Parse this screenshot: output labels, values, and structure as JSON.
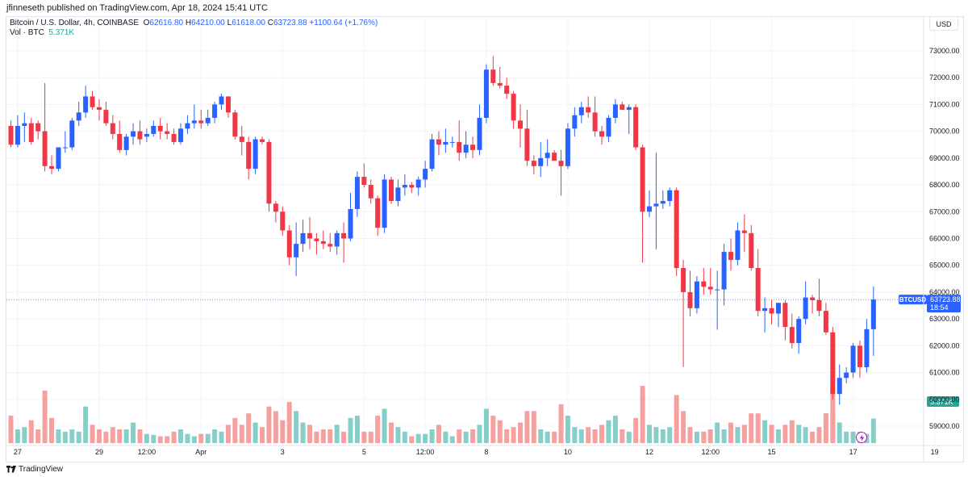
{
  "header": {
    "publisher": "jfinneseth published on TradingView.com, Apr 18, 2024 15:41 UTC"
  },
  "legend": {
    "symbol": "Bitcoin / U.S. Dollar, 4h, COINBASE",
    "o_key": "O",
    "o_val": "62616.80",
    "h_key": "H",
    "h_val": "64210.00",
    "l_key": "L",
    "l_val": "61618.00",
    "c_key": "C",
    "c_val": "63723.88",
    "change": "+1100.64 (+1.76%)",
    "vol_label": "Vol · BTC",
    "vol_value": "5.371K"
  },
  "currency": "USD",
  "price_tag": {
    "symbol": "BTCUSD",
    "price": "63723.88",
    "countdown": "18:54"
  },
  "volume_tag": "5.371K",
  "footer": {
    "brand": "TradingView"
  },
  "colors": {
    "up": "#2962ff",
    "down": "#f23645",
    "vol_up": "#26a69a",
    "vol_down": "#ef5350"
  },
  "chart_data": {
    "type": "candlestick",
    "timeframe": "4h",
    "y_axis": {
      "min": 58500,
      "max": 73500,
      "ticks": [
        59000,
        60000,
        61000,
        62000,
        63000,
        64000,
        65000,
        66000,
        67000,
        68000,
        69000,
        70000,
        71000,
        72000,
        73000
      ],
      "tick_labels": [
        "59000.00",
        "60000.00",
        "61000.00",
        "62000.00",
        "63000.00",
        "64000.00",
        "65000.00",
        "66000.00",
        "67000.00",
        "68000.00",
        "69000.00",
        "70000.00",
        "71000.00",
        "72000.00",
        "73000.00"
      ]
    },
    "x_axis": {
      "labels": [
        {
          "label": "27",
          "bar": 1
        },
        {
          "label": "29",
          "bar": 13
        },
        {
          "label": "12:00",
          "bar": 20
        },
        {
          "label": "Apr",
          "bar": 28
        },
        {
          "label": "3",
          "bar": 40
        },
        {
          "label": "5",
          "bar": 52
        },
        {
          "label": "12:00",
          "bar": 61
        },
        {
          "label": "8",
          "bar": 70
        },
        {
          "label": "10",
          "bar": 82
        },
        {
          "label": "12",
          "bar": 94
        },
        {
          "label": "12:00",
          "bar": 103
        },
        {
          "label": "15",
          "bar": 112
        },
        {
          "label": "17",
          "bar": 124
        },
        {
          "label": "19",
          "bar": 136
        }
      ]
    },
    "last_price": 63723.88,
    "volume_max": 15,
    "candles": [
      {
        "o": 70200,
        "h": 70400,
        "l": 69400,
        "c": 69500,
        "v": 6
      },
      {
        "o": 69500,
        "h": 70600,
        "l": 69400,
        "c": 70200,
        "v": 3
      },
      {
        "o": 70200,
        "h": 70700,
        "l": 69600,
        "c": 70300,
        "v": 3.5
      },
      {
        "o": 70300,
        "h": 70500,
        "l": 69500,
        "c": 69600,
        "v": 5
      },
      {
        "o": 70300,
        "h": 70400,
        "l": 69700,
        "c": 70000,
        "v": 3
      },
      {
        "o": 70000,
        "h": 71800,
        "l": 68500,
        "c": 68700,
        "v": 11.5
      },
      {
        "o": 68700,
        "h": 69100,
        "l": 68400,
        "c": 68600,
        "v": 5.5
      },
      {
        "o": 68600,
        "h": 69400,
        "l": 68500,
        "c": 69400,
        "v": 3
      },
      {
        "o": 69400,
        "h": 70000,
        "l": 69200,
        "c": 69400,
        "v": 2.5
      },
      {
        "o": 69400,
        "h": 70500,
        "l": 69300,
        "c": 70400,
        "v": 3
      },
      {
        "o": 70400,
        "h": 71100,
        "l": 70200,
        "c": 70700,
        "v": 2.5
      },
      {
        "o": 70700,
        "h": 71700,
        "l": 70500,
        "c": 71300,
        "v": 8
      },
      {
        "o": 71300,
        "h": 71500,
        "l": 70800,
        "c": 70900,
        "v": 4
      },
      {
        "o": 70900,
        "h": 71200,
        "l": 70400,
        "c": 70800,
        "v": 3
      },
      {
        "o": 70800,
        "h": 71100,
        "l": 70200,
        "c": 70300,
        "v": 2.5
      },
      {
        "o": 70300,
        "h": 70600,
        "l": 69700,
        "c": 69900,
        "v": 3.5
      },
      {
        "o": 69900,
        "h": 70400,
        "l": 69200,
        "c": 69300,
        "v": 3
      },
      {
        "o": 69300,
        "h": 69900,
        "l": 69100,
        "c": 69800,
        "v": 3
      },
      {
        "o": 69800,
        "h": 70300,
        "l": 69500,
        "c": 70000,
        "v": 4.5
      },
      {
        "o": 70000,
        "h": 70400,
        "l": 69500,
        "c": 69700,
        "v": 3
      },
      {
        "o": 69800,
        "h": 70100,
        "l": 69600,
        "c": 69900,
        "v": 2
      },
      {
        "o": 69900,
        "h": 70400,
        "l": 69800,
        "c": 70200,
        "v": 1.8
      },
      {
        "o": 70200,
        "h": 70500,
        "l": 69700,
        "c": 70000,
        "v": 1.5
      },
      {
        "o": 70000,
        "h": 70300,
        "l": 69700,
        "c": 69900,
        "v": 1.5
      },
      {
        "o": 69900,
        "h": 70100,
        "l": 69500,
        "c": 69600,
        "v": 2.5
      },
      {
        "o": 69600,
        "h": 70300,
        "l": 69500,
        "c": 70100,
        "v": 3
      },
      {
        "o": 70100,
        "h": 70600,
        "l": 69900,
        "c": 70300,
        "v": 2
      },
      {
        "o": 70300,
        "h": 71000,
        "l": 70100,
        "c": 70400,
        "v": 1.5
      },
      {
        "o": 70400,
        "h": 70800,
        "l": 70100,
        "c": 70300,
        "v": 2
      },
      {
        "o": 70300,
        "h": 70800,
        "l": 70200,
        "c": 70500,
        "v": 2
      },
      {
        "o": 70500,
        "h": 71100,
        "l": 70300,
        "c": 71000,
        "v": 3
      },
      {
        "o": 71000,
        "h": 71400,
        "l": 70800,
        "c": 71300,
        "v": 2.5
      },
      {
        "o": 71300,
        "h": 71300,
        "l": 70500,
        "c": 70700,
        "v": 4
      },
      {
        "o": 70700,
        "h": 70800,
        "l": 69700,
        "c": 69800,
        "v": 5.5
      },
      {
        "o": 69800,
        "h": 70200,
        "l": 69100,
        "c": 69600,
        "v": 4
      },
      {
        "o": 69600,
        "h": 69800,
        "l": 68200,
        "c": 68600,
        "v": 6.5
      },
      {
        "o": 68600,
        "h": 69800,
        "l": 68400,
        "c": 69700,
        "v": 4.5
      },
      {
        "o": 69700,
        "h": 69800,
        "l": 69500,
        "c": 69600,
        "v": 3.5
      },
      {
        "o": 69600,
        "h": 69700,
        "l": 67000,
        "c": 67300,
        "v": 8
      },
      {
        "o": 67300,
        "h": 67400,
        "l": 66600,
        "c": 67000,
        "v": 7
      },
      {
        "o": 67000,
        "h": 67200,
        "l": 66100,
        "c": 66300,
        "v": 5
      },
      {
        "o": 66300,
        "h": 66500,
        "l": 65000,
        "c": 65300,
        "v": 9
      },
      {
        "o": 65300,
        "h": 66600,
        "l": 64600,
        "c": 65800,
        "v": 7
      },
      {
        "o": 65800,
        "h": 66700,
        "l": 65500,
        "c": 66200,
        "v": 4.5
      },
      {
        "o": 66200,
        "h": 66800,
        "l": 65600,
        "c": 66000,
        "v": 4
      },
      {
        "o": 66000,
        "h": 66200,
        "l": 65400,
        "c": 65900,
        "v": 2.5
      },
      {
        "o": 65900,
        "h": 66300,
        "l": 65600,
        "c": 65800,
        "v": 3
      },
      {
        "o": 65800,
        "h": 66200,
        "l": 65500,
        "c": 65700,
        "v": 3
      },
      {
        "o": 65700,
        "h": 66300,
        "l": 65400,
        "c": 66200,
        "v": 4
      },
      {
        "o": 66200,
        "h": 66600,
        "l": 65100,
        "c": 66000,
        "v": 2.5
      },
      {
        "o": 66000,
        "h": 67700,
        "l": 65900,
        "c": 67100,
        "v": 5.5
      },
      {
        "o": 67100,
        "h": 68500,
        "l": 66800,
        "c": 68300,
        "v": 6
      },
      {
        "o": 68300,
        "h": 68800,
        "l": 67900,
        "c": 68000,
        "v": 2.5
      },
      {
        "o": 68000,
        "h": 68200,
        "l": 67300,
        "c": 67500,
        "v": 2.5
      },
      {
        "o": 67500,
        "h": 67600,
        "l": 66100,
        "c": 66400,
        "v": 6
      },
      {
        "o": 66400,
        "h": 68400,
        "l": 66200,
        "c": 68200,
        "v": 7.5
      },
      {
        "o": 68200,
        "h": 68300,
        "l": 67300,
        "c": 67400,
        "v": 4.5
      },
      {
        "o": 67400,
        "h": 68200,
        "l": 67200,
        "c": 67900,
        "v": 3.5
      },
      {
        "o": 67900,
        "h": 68400,
        "l": 67600,
        "c": 68000,
        "v": 2.5
      },
      {
        "o": 68000,
        "h": 68100,
        "l": 67700,
        "c": 67900,
        "v": 1.5
      },
      {
        "o": 67900,
        "h": 68300,
        "l": 67600,
        "c": 68200,
        "v": 2
      },
      {
        "o": 68200,
        "h": 68900,
        "l": 67900,
        "c": 68600,
        "v": 2
      },
      {
        "o": 68600,
        "h": 69900,
        "l": 68500,
        "c": 69700,
        "v": 3
      },
      {
        "o": 69700,
        "h": 70000,
        "l": 69100,
        "c": 69500,
        "v": 4
      },
      {
        "o": 69500,
        "h": 70100,
        "l": 69200,
        "c": 69600,
        "v": 2.5
      },
      {
        "o": 69600,
        "h": 69800,
        "l": 69400,
        "c": 69600,
        "v": 1.5
      },
      {
        "o": 69600,
        "h": 70400,
        "l": 68900,
        "c": 69200,
        "v": 3
      },
      {
        "o": 69200,
        "h": 70000,
        "l": 69000,
        "c": 69500,
        "v": 2.5
      },
      {
        "o": 69500,
        "h": 69800,
        "l": 69000,
        "c": 69300,
        "v": 3
      },
      {
        "o": 69300,
        "h": 71000,
        "l": 69100,
        "c": 70500,
        "v": 4
      },
      {
        "o": 70500,
        "h": 72500,
        "l": 70300,
        "c": 72300,
        "v": 7.5
      },
      {
        "o": 72300,
        "h": 72800,
        "l": 71700,
        "c": 71800,
        "v": 6
      },
      {
        "o": 71800,
        "h": 72400,
        "l": 71600,
        "c": 71700,
        "v": 5
      },
      {
        "o": 71700,
        "h": 72000,
        "l": 71200,
        "c": 71400,
        "v": 3
      },
      {
        "o": 71400,
        "h": 71500,
        "l": 70100,
        "c": 70400,
        "v": 3.5
      },
      {
        "o": 70400,
        "h": 71000,
        "l": 69400,
        "c": 70100,
        "v": 4.5
      },
      {
        "o": 70100,
        "h": 70800,
        "l": 68700,
        "c": 68900,
        "v": 7
      },
      {
        "o": 68900,
        "h": 69100,
        "l": 68400,
        "c": 68700,
        "v": 7
      },
      {
        "o": 68700,
        "h": 69600,
        "l": 68300,
        "c": 69000,
        "v": 3
      },
      {
        "o": 69000,
        "h": 69700,
        "l": 68700,
        "c": 69200,
        "v": 2.5
      },
      {
        "o": 69200,
        "h": 69300,
        "l": 68900,
        "c": 68900,
        "v": 2.5
      },
      {
        "o": 68900,
        "h": 69300,
        "l": 67600,
        "c": 68700,
        "v": 8.5
      },
      {
        "o": 68700,
        "h": 70300,
        "l": 68600,
        "c": 70100,
        "v": 6
      },
      {
        "o": 70100,
        "h": 70900,
        "l": 69800,
        "c": 70600,
        "v": 3.5
      },
      {
        "o": 70600,
        "h": 71100,
        "l": 70300,
        "c": 70900,
        "v": 3
      },
      {
        "o": 70900,
        "h": 71300,
        "l": 70500,
        "c": 70700,
        "v": 3.5
      },
      {
        "o": 70700,
        "h": 71300,
        "l": 69800,
        "c": 70000,
        "v": 3
      },
      {
        "o": 70000,
        "h": 70200,
        "l": 69500,
        "c": 69800,
        "v": 4
      },
      {
        "o": 69800,
        "h": 70600,
        "l": 69600,
        "c": 70500,
        "v": 5
      },
      {
        "o": 70500,
        "h": 71200,
        "l": 70300,
        "c": 71000,
        "v": 6
      },
      {
        "o": 71000,
        "h": 71100,
        "l": 70800,
        "c": 70800,
        "v": 3
      },
      {
        "o": 70800,
        "h": 71000,
        "l": 69900,
        "c": 70900,
        "v": 2.5
      },
      {
        "o": 70900,
        "h": 71000,
        "l": 69300,
        "c": 69400,
        "v": 5.5
      },
      {
        "o": 69400,
        "h": 69500,
        "l": 65100,
        "c": 67000,
        "v": 12.5
      },
      {
        "o": 67000,
        "h": 67800,
        "l": 66800,
        "c": 67200,
        "v": 4
      },
      {
        "o": 67200,
        "h": 69200,
        "l": 65600,
        "c": 67300,
        "v": 3.5
      },
      {
        "o": 67300,
        "h": 67800,
        "l": 67100,
        "c": 67400,
        "v": 3
      },
      {
        "o": 67400,
        "h": 67900,
        "l": 67200,
        "c": 67800,
        "v": 3.5
      },
      {
        "o": 67800,
        "h": 67900,
        "l": 64600,
        "c": 64900,
        "v": 10.5
      },
      {
        "o": 64900,
        "h": 65200,
        "l": 61200,
        "c": 64000,
        "v": 7
      },
      {
        "o": 64000,
        "h": 64800,
        "l": 63100,
        "c": 63400,
        "v": 3.5
      },
      {
        "o": 63400,
        "h": 64600,
        "l": 63200,
        "c": 64400,
        "v": 2.5
      },
      {
        "o": 64400,
        "h": 64900,
        "l": 63900,
        "c": 64200,
        "v": 2.5
      },
      {
        "o": 64200,
        "h": 64900,
        "l": 63900,
        "c": 64100,
        "v": 3
      },
      {
        "o": 64100,
        "h": 64800,
        "l": 62600,
        "c": 64100,
        "v": 4.5
      },
      {
        "o": 64100,
        "h": 65800,
        "l": 63500,
        "c": 65500,
        "v": 3
      },
      {
        "o": 65500,
        "h": 66000,
        "l": 64800,
        "c": 65200,
        "v": 4.5
      },
      {
        "o": 65200,
        "h": 66600,
        "l": 65000,
        "c": 66300,
        "v": 3.5
      },
      {
        "o": 66300,
        "h": 66900,
        "l": 65500,
        "c": 66200,
        "v": 4
      },
      {
        "o": 66200,
        "h": 66500,
        "l": 64800,
        "c": 64900,
        "v": 6.5
      },
      {
        "o": 64900,
        "h": 65600,
        "l": 63100,
        "c": 63300,
        "v": 6.5
      },
      {
        "o": 63300,
        "h": 63800,
        "l": 62500,
        "c": 63400,
        "v": 5
      },
      {
        "o": 63400,
        "h": 63700,
        "l": 62800,
        "c": 63200,
        "v": 4
      },
      {
        "o": 63200,
        "h": 63500,
        "l": 62700,
        "c": 63600,
        "v": 3
      },
      {
        "o": 63600,
        "h": 63700,
        "l": 62200,
        "c": 62700,
        "v": 4
      },
      {
        "o": 62700,
        "h": 63200,
        "l": 61900,
        "c": 62100,
        "v": 5
      },
      {
        "o": 62100,
        "h": 63100,
        "l": 61700,
        "c": 63000,
        "v": 4
      },
      {
        "o": 63000,
        "h": 64400,
        "l": 62800,
        "c": 63800,
        "v": 3.5
      },
      {
        "o": 63800,
        "h": 63900,
        "l": 63200,
        "c": 63700,
        "v": 2.5
      },
      {
        "o": 63700,
        "h": 64500,
        "l": 63100,
        "c": 63300,
        "v": 3.5
      },
      {
        "o": 63300,
        "h": 63600,
        "l": 62400,
        "c": 62500,
        "v": 6.5
      },
      {
        "o": 62500,
        "h": 62700,
        "l": 60000,
        "c": 60200,
        "v": 12
      },
      {
        "o": 60200,
        "h": 61300,
        "l": 59800,
        "c": 60800,
        "v": 4.5
      },
      {
        "o": 60800,
        "h": 61200,
        "l": 60600,
        "c": 61000,
        "v": 2.5
      },
      {
        "o": 61000,
        "h": 62100,
        "l": 60800,
        "c": 62000,
        "v": 2.5
      },
      {
        "o": 62000,
        "h": 62200,
        "l": 60800,
        "c": 61200,
        "v": 2.5
      },
      {
        "o": 61200,
        "h": 63000,
        "l": 61000,
        "c": 62616.8,
        "v": 2
      },
      {
        "o": 62616.8,
        "h": 64210,
        "l": 61618,
        "c": 63723.88,
        "v": 5.371
      }
    ]
  }
}
